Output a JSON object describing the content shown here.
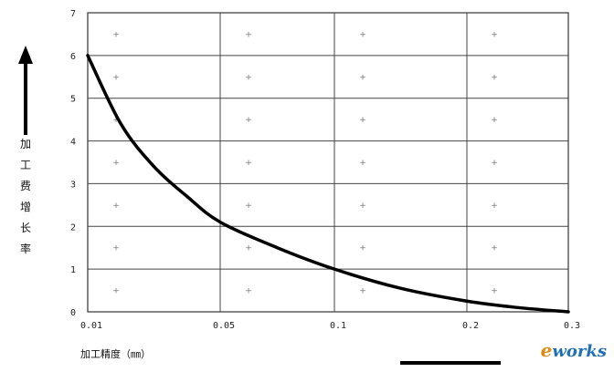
{
  "chart_data": {
    "type": "line",
    "title": "",
    "xlabel": "加工精度（㎜）",
    "ylabel": "加工费增长率",
    "x_ticks": [
      "0.01",
      "0.05",
      "0.1",
      "0.2",
      "0.3"
    ],
    "y_ticks": [
      "0",
      "1",
      "2",
      "3",
      "4",
      "5",
      "6",
      "7"
    ],
    "ylim": [
      0,
      7
    ],
    "grid": true,
    "series": [
      {
        "x": [
          0.01,
          0.02,
          0.03,
          0.04,
          0.05,
          0.075,
          0.1,
          0.15,
          0.2,
          0.25,
          0.3
        ],
        "y": [
          6.0,
          4.4,
          3.4,
          2.7,
          2.1,
          1.5,
          1.0,
          0.55,
          0.25,
          0.1,
          0.0
        ]
      }
    ],
    "color": "#000000"
  },
  "watermark": {
    "e": "e",
    "rest": "works"
  }
}
